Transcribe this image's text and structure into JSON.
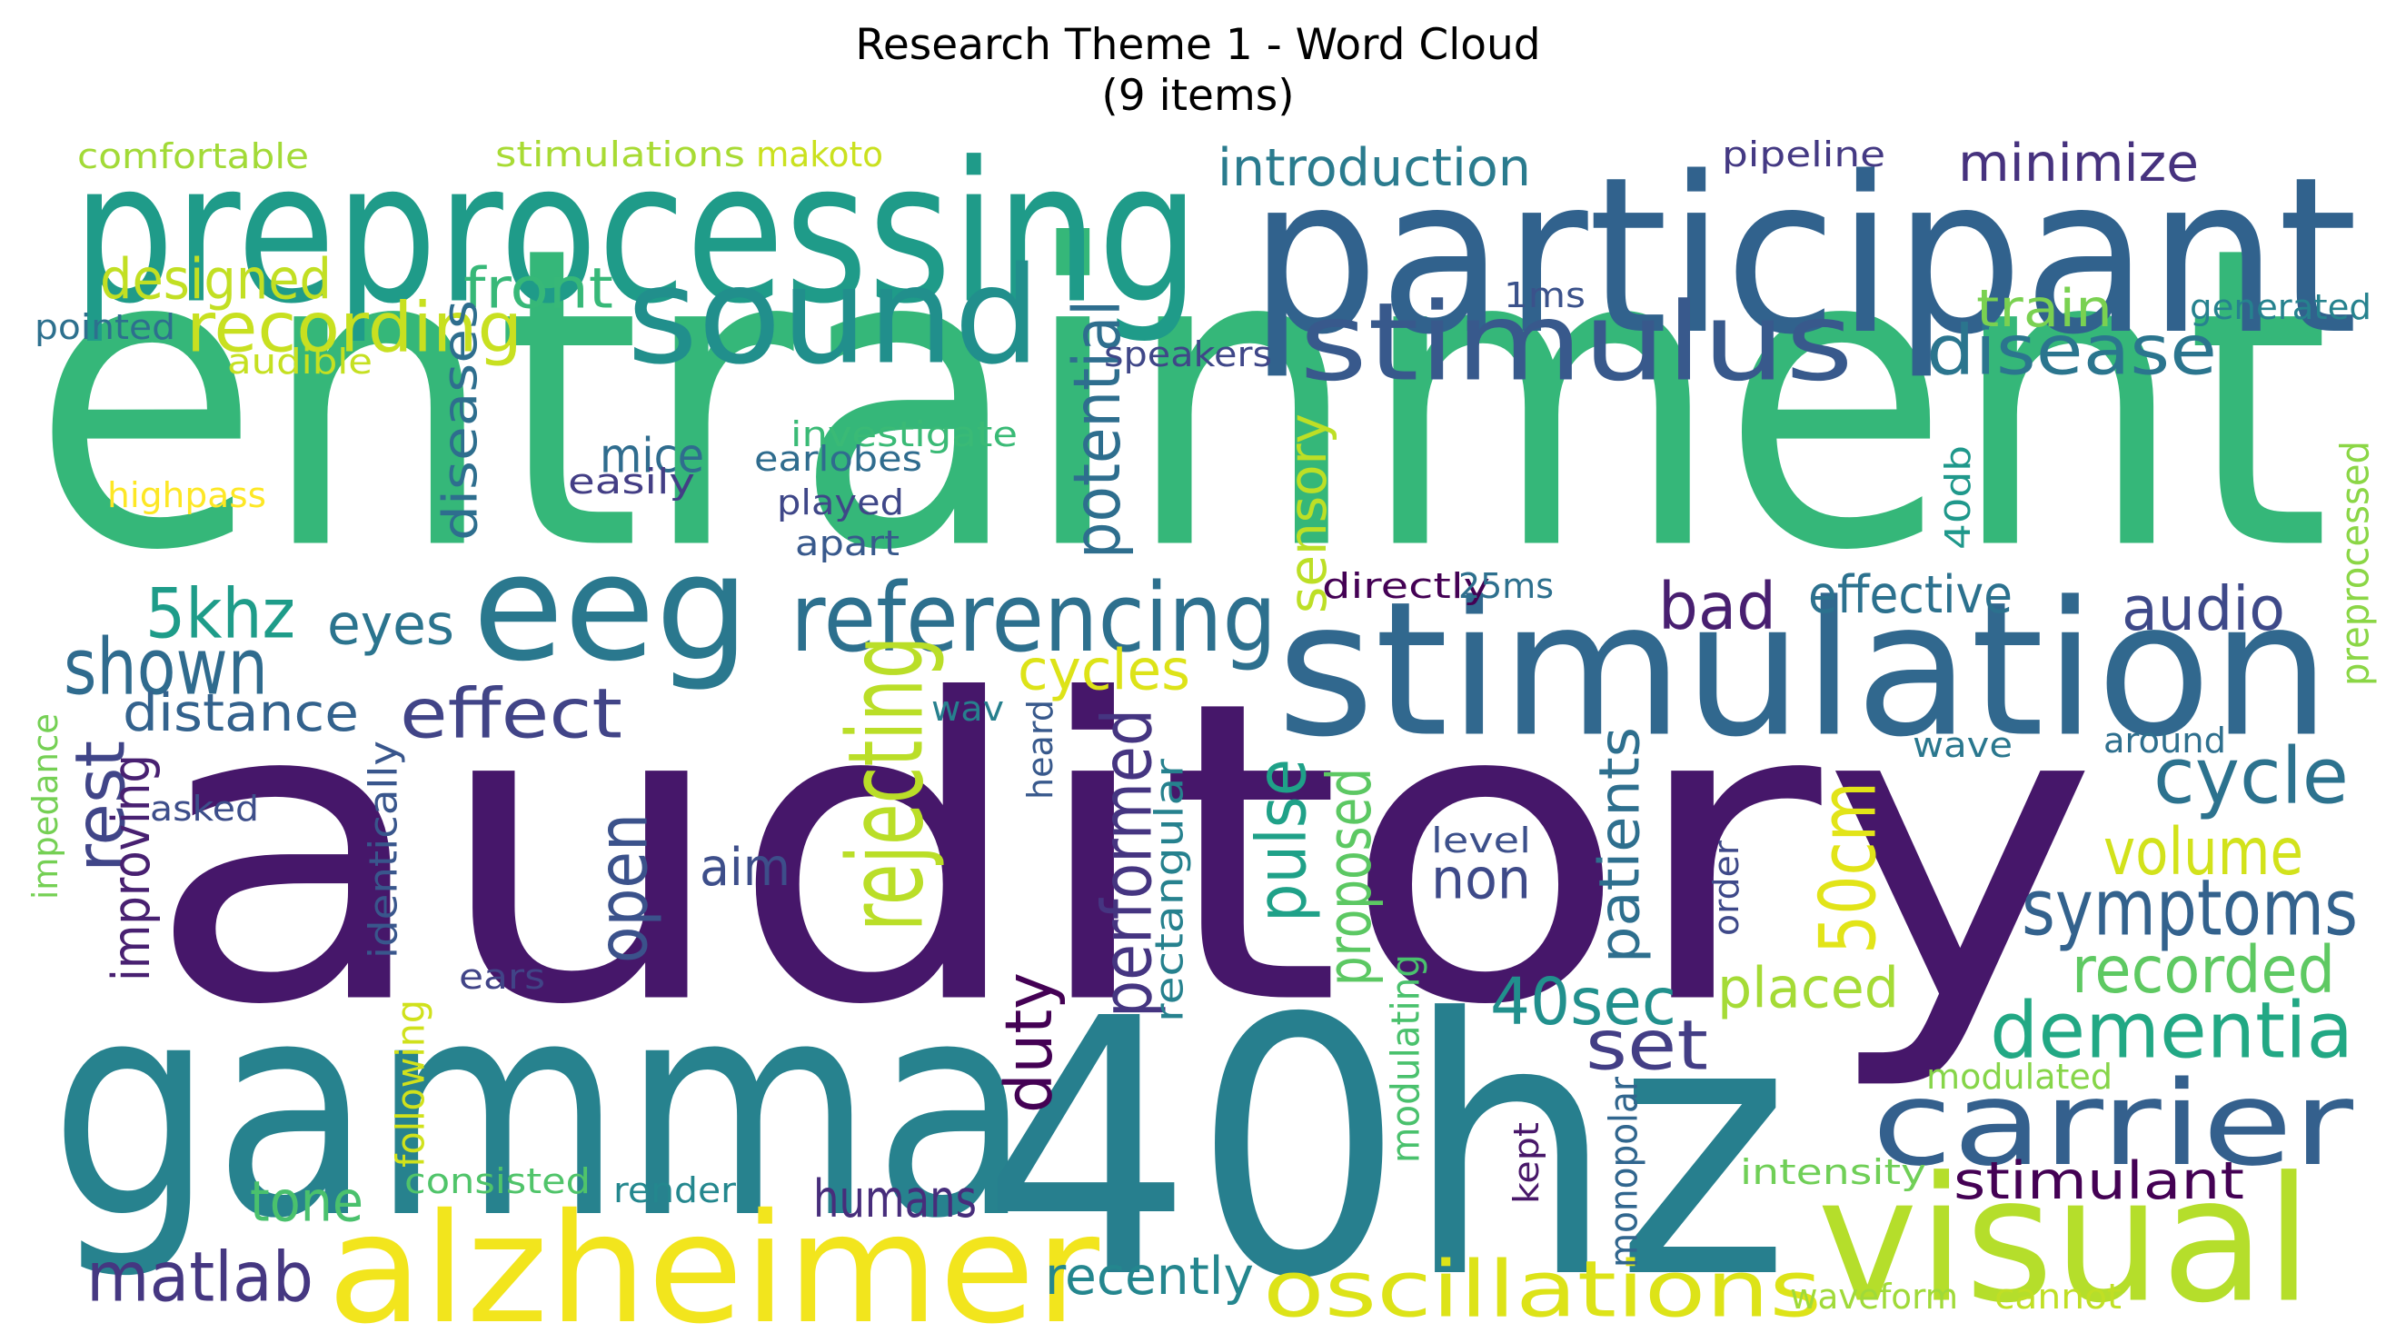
{
  "title_line1": "Research Theme 1 - Word Cloud",
  "title_line2": "(9 items)",
  "words": [
    {
      "text": "entrainment",
      "color": "#35b779"
    },
    {
      "text": "auditory",
      "color": "#46176a"
    },
    {
      "text": "gamma",
      "color": "#27828e"
    },
    {
      "text": "40hz",
      "color": "#277f8e"
    },
    {
      "text": "participant",
      "color": "#31628d"
    },
    {
      "text": "preprocessing",
      "color": "#1f9b89"
    },
    {
      "text": "stimulation",
      "color": "#31688e"
    },
    {
      "text": "alzheimer",
      "color": "#f2e51d"
    },
    {
      "text": "visual",
      "color": "#b5de2b"
    },
    {
      "text": "sound",
      "color": "#218f8c"
    },
    {
      "text": "eeg",
      "color": "#2a788e"
    },
    {
      "text": "stimulus",
      "color": "#38598c"
    },
    {
      "text": "carrier",
      "color": "#34608d"
    },
    {
      "text": "referencing",
      "color": "#2d708e"
    },
    {
      "text": "oscillations",
      "color": "#dde318"
    },
    {
      "text": "dementia",
      "color": "#22a884"
    },
    {
      "text": "symptoms",
      "color": "#33628d"
    },
    {
      "text": "recording",
      "color": "#c8e020"
    },
    {
      "text": "disease",
      "color": "#2b758e"
    },
    {
      "text": "cycle",
      "color": "#2c728e"
    },
    {
      "text": "shown",
      "color": "#2f6b8e"
    },
    {
      "text": "rejecting",
      "color": "#bade28"
    },
    {
      "text": "50cm",
      "color": "#e2e418"
    },
    {
      "text": "matlab",
      "color": "#453781"
    },
    {
      "text": "effect",
      "color": "#414487"
    },
    {
      "text": "recorded",
      "color": "#5ec962"
    },
    {
      "text": "5khz",
      "color": "#1e9c89"
    },
    {
      "text": "set",
      "color": "#433e85"
    },
    {
      "text": "audio",
      "color": "#3e4989"
    },
    {
      "text": "volume",
      "color": "#d2e21b"
    },
    {
      "text": "bad",
      "color": "#481f70"
    },
    {
      "text": "minimize",
      "color": "#46327e"
    },
    {
      "text": "introduction",
      "color": "#2a7b8e"
    },
    {
      "text": "designed",
      "color": "#c2df23"
    },
    {
      "text": "front",
      "color": "#37b878"
    },
    {
      "text": "placed",
      "color": "#a5db36"
    },
    {
      "text": "40sec",
      "color": "#21908d"
    },
    {
      "text": "distance",
      "color": "#33628d"
    },
    {
      "text": "eyes",
      "color": "#2b748e"
    },
    {
      "text": "stimulant",
      "color": "#440154"
    },
    {
      "text": "humans",
      "color": "#472d7b"
    },
    {
      "text": "recently",
      "color": "#24868e"
    },
    {
      "text": "tone",
      "color": "#4ac16d"
    },
    {
      "text": "effective",
      "color": "#2c718e"
    },
    {
      "text": "train",
      "color": "#7ad151"
    },
    {
      "text": "cycles",
      "color": "#dde318"
    },
    {
      "text": "pulse",
      "color": "#1fa188"
    },
    {
      "text": "proposed",
      "color": "#5cc863"
    },
    {
      "text": "potential",
      "color": "#2e6e8e"
    },
    {
      "text": "open",
      "color": "#3b528b"
    },
    {
      "text": "rest",
      "color": "#404588"
    },
    {
      "text": "improving",
      "color": "#482071"
    },
    {
      "text": "duty",
      "color": "#440154"
    },
    {
      "text": "performed",
      "color": "#453581"
    },
    {
      "text": "patients",
      "color": "#2e6f8e"
    },
    {
      "text": "non",
      "color": "#3e4a89"
    },
    {
      "text": "aim",
      "color": "#3d4e8a"
    },
    {
      "text": "sensory",
      "color": "#bddf26"
    },
    {
      "text": "diseases",
      "color": "#2e6e8e"
    },
    {
      "text": "mice",
      "color": "#2f6c8e"
    },
    {
      "text": "comfortable",
      "color": "#a2da37"
    },
    {
      "text": "stimulations",
      "color": "#a8db34"
    },
    {
      "text": "makoto",
      "color": "#cae11f"
    },
    {
      "text": "pipeline",
      "color": "#443983"
    },
    {
      "text": "pointed",
      "color": "#2d708e"
    },
    {
      "text": "audible",
      "color": "#c5e021"
    },
    {
      "text": "1ms",
      "color": "#3b528b"
    },
    {
      "text": "generated",
      "color": "#26828e"
    },
    {
      "text": "speakers",
      "color": "#3f4788"
    },
    {
      "text": "investigate",
      "color": "#3aba76"
    },
    {
      "text": "earlobes",
      "color": "#2f6c8e"
    },
    {
      "text": "easily",
      "color": "#433e85"
    },
    {
      "text": "highpass",
      "color": "#fde725"
    },
    {
      "text": "played",
      "color": "#3f4788"
    },
    {
      "text": "apart",
      "color": "#38598c"
    },
    {
      "text": "40db",
      "color": "#1f988b"
    },
    {
      "text": "directly",
      "color": "#440154"
    },
    {
      "text": "25ms",
      "color": "#2d708e"
    },
    {
      "text": "wav",
      "color": "#27808e"
    },
    {
      "text": "heard",
      "color": "#38598c"
    },
    {
      "text": "asked",
      "color": "#3d4e8a"
    },
    {
      "text": "identically",
      "color": "#39568c"
    },
    {
      "text": "level",
      "color": "#3c508b"
    },
    {
      "text": "order",
      "color": "#3e4989"
    },
    {
      "text": "wave",
      "color": "#2a778e"
    },
    {
      "text": "around",
      "color": "#2e6f8e"
    },
    {
      "text": "impedance",
      "color": "#75d054"
    },
    {
      "text": "preprocessed",
      "color": "#8bd646"
    },
    {
      "text": "rectangular",
      "color": "#26818e"
    },
    {
      "text": "following",
      "color": "#d0e11c"
    },
    {
      "text": "ears",
      "color": "#414487"
    },
    {
      "text": "consisted",
      "color": "#50c46a"
    },
    {
      "text": "render",
      "color": "#24878e"
    },
    {
      "text": "modulating",
      "color": "#4ac16d"
    },
    {
      "text": "kept",
      "color": "#481769"
    },
    {
      "text": "monopolar",
      "color": "#31668e"
    },
    {
      "text": "intensity",
      "color": "#70cf57"
    },
    {
      "text": "modulated",
      "color": "#86d549"
    },
    {
      "text": "waveform",
      "color": "#a0da39"
    },
    {
      "text": "cannot",
      "color": "#c0df25"
    }
  ]
}
